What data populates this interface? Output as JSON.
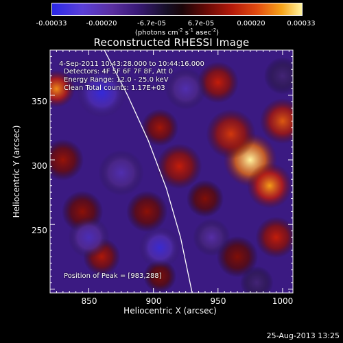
{
  "colorbar": {
    "ticks": [
      "-0.00033",
      "-0.00020",
      "-6.7e-05",
      "6.7e-05",
      "0.00020",
      "0.00033"
    ],
    "units_base": "(photons cm",
    "units_exp1": "-2",
    "units_mid": " s",
    "units_exp2": "-1",
    "units_mid2": " asec",
    "units_exp3": "-2",
    "units_end": ")"
  },
  "annotations": {
    "time_range": "4-Sep-2011 10:43:28.000 to 10:44:16.000",
    "detectors": "Detectors: 4F 5F 6F 7F 8F, Att 0",
    "energy": "Energy Range: 12.0 - 25.0 keV",
    "clean": "Clean    Total counts: 1.17E+03",
    "peak": "Position of Peak = [983,288]"
  },
  "timestamp": "25-Aug-2013 13:25",
  "chart_data": {
    "type": "heatmap",
    "title": "Reconstructed RHESSI Image",
    "xlabel": "Heliocentric X (arcsec)",
    "ylabel": "Heliocentric Y (arcsec)",
    "xlim": [
      820,
      1008
    ],
    "ylim": [
      197,
      385
    ],
    "xticks": [
      850,
      900,
      950,
      1000
    ],
    "yticks": [
      250,
      300,
      350
    ],
    "zlim": [
      -0.00033,
      0.00033
    ],
    "peak": [
      983,
      288
    ],
    "limb_curve": [
      [
        862,
        385
      ],
      [
        880,
        350
      ],
      [
        896,
        315
      ],
      [
        910,
        278
      ],
      [
        921,
        240
      ],
      [
        930,
        197
      ]
    ],
    "features": [
      {
        "x": 975,
        "y": 300,
        "v": 0.00033,
        "s": 13
      },
      {
        "x": 990,
        "y": 280,
        "v": 0.00026,
        "s": 11
      },
      {
        "x": 960,
        "y": 320,
        "v": 0.0002,
        "s": 12
      },
      {
        "x": 1000,
        "y": 330,
        "v": 0.00022,
        "s": 11
      },
      {
        "x": 950,
        "y": 360,
        "v": 0.00018,
        "s": 10
      },
      {
        "x": 995,
        "y": 240,
        "v": 0.00018,
        "s": 10
      },
      {
        "x": 965,
        "y": 225,
        "v": 0.00012,
        "s": 10
      },
      {
        "x": 920,
        "y": 295,
        "v": 0.00018,
        "s": 11
      },
      {
        "x": 905,
        "y": 325,
        "v": 0.00015,
        "s": 9
      },
      {
        "x": 895,
        "y": 260,
        "v": 0.00013,
        "s": 10
      },
      {
        "x": 940,
        "y": 270,
        "v": 0.00012,
        "s": 9
      },
      {
        "x": 825,
        "y": 355,
        "v": 0.00025,
        "s": 9
      },
      {
        "x": 830,
        "y": 300,
        "v": 0.00014,
        "s": 10
      },
      {
        "x": 845,
        "y": 260,
        "v": 0.00013,
        "s": 10
      },
      {
        "x": 860,
        "y": 225,
        "v": 0.00016,
        "s": 9
      },
      {
        "x": 905,
        "y": 210,
        "v": 0.00012,
        "s": 8
      },
      {
        "x": 860,
        "y": 352,
        "v": -0.0003,
        "s": 12
      },
      {
        "x": 905,
        "y": 232,
        "v": -0.00028,
        "s": 10
      },
      {
        "x": 850,
        "y": 240,
        "v": -0.00022,
        "s": 10
      },
      {
        "x": 925,
        "y": 355,
        "v": -0.0002,
        "s": 10
      },
      {
        "x": 945,
        "y": 240,
        "v": -0.00018,
        "s": 9
      },
      {
        "x": 875,
        "y": 290,
        "v": -0.0002,
        "s": 11
      },
      {
        "x": 1000,
        "y": 365,
        "v": -0.00012,
        "s": 9
      },
      {
        "x": 980,
        "y": 205,
        "v": -0.00012,
        "s": 8
      }
    ]
  }
}
